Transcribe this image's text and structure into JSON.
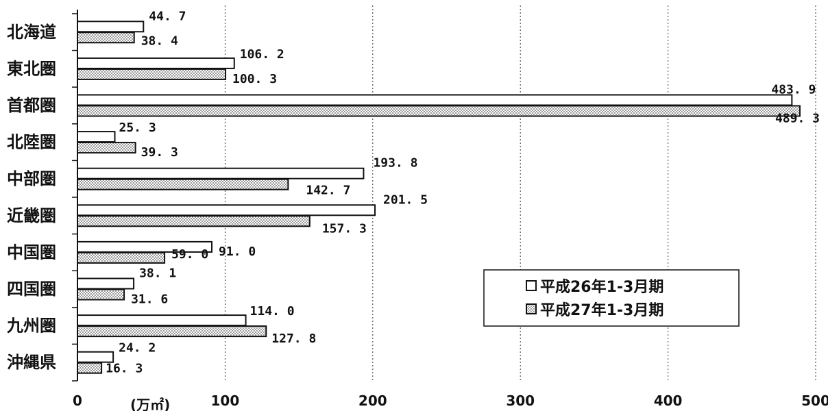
{
  "chart_data": {
    "type": "bar",
    "orientation": "horizontal",
    "categories": [
      "北海道",
      "東北圏",
      "首都圏",
      "北陸圏",
      "中部圏",
      "近畿圏",
      "中国圏",
      "四国圏",
      "九州圏",
      "沖縄県"
    ],
    "series": [
      {
        "name": "平成26年1-3月期",
        "values": [
          44.7,
          106.2,
          483.9,
          25.3,
          193.8,
          201.5,
          91.0,
          38.1,
          114.0,
          24.2
        ],
        "labels": [
          "44. 7",
          "106. 2",
          "483. 9",
          "25. 3",
          "193. 8",
          "201. 5",
          "91. 0",
          "38. 1",
          "114. 0",
          "24. 2"
        ],
        "fill": "#ffffff"
      },
      {
        "name": "平成27年1-3月期",
        "values": [
          38.4,
          100.3,
          489.3,
          39.3,
          142.7,
          157.3,
          59.0,
          31.6,
          127.8,
          16.3
        ],
        "labels": [
          "38. 4",
          "100. 3",
          "489. 3",
          "39. 3",
          "142. 7",
          "157. 3",
          "59. 0",
          "31. 6",
          "127. 8",
          "16. 3"
        ],
        "fill": "dotted"
      }
    ],
    "xlim": [
      0,
      500
    ],
    "xticks": [
      "0",
      "100",
      "200",
      "300",
      "400",
      "500"
    ],
    "unit_label": "(万㎡)",
    "grid": "vertical dashed",
    "legend_position": "right",
    "colors": {
      "stroke": "#111111",
      "dot": "#555555",
      "background": "#ffffff"
    }
  }
}
